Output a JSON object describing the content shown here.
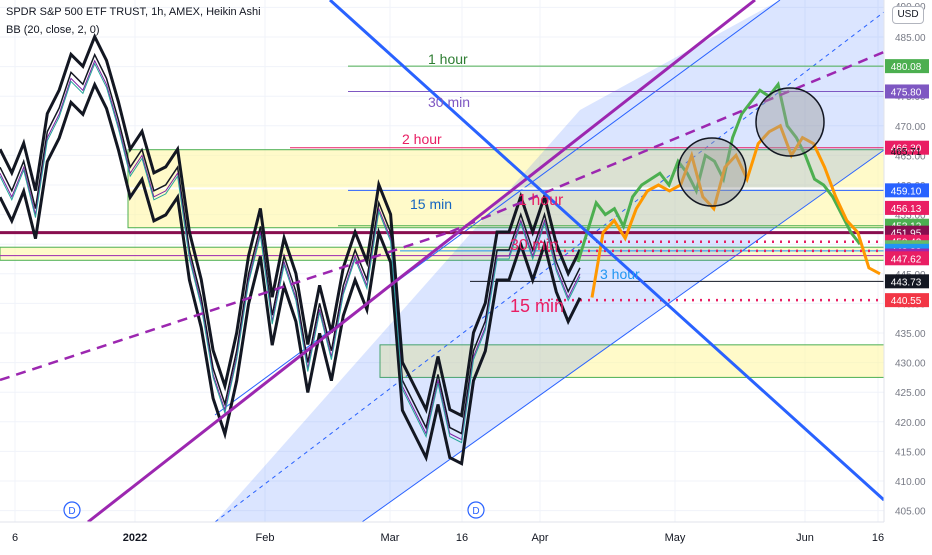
{
  "header": {
    "title": "SPDR S&P 500 ETF TRUST, 1h, AMEX, Heikin Ashi",
    "indicator": "BB (20, close, 2, 0)",
    "currency": "USD"
  },
  "colors": {
    "blue_line": "#2962ff",
    "purple_line": "#9c27b0",
    "channel_fill": "#2962ff",
    "zone_fill": "#fff59d",
    "zone_border": "#4caf50",
    "green_path": "#4caf50",
    "orange_path": "#ff9800",
    "dark_red": "#880e4f",
    "red_dotted": "#e91e63"
  },
  "chart_data": {
    "type": "line",
    "title": "SPDR S&P 500 ETF TRUST, 1h, AMEX, Heikin Ashi",
    "x_ticks": [
      "6",
      "2022",
      "Feb",
      "Mar",
      "16",
      "Apr",
      "May",
      "Jun",
      "16"
    ],
    "y_ticks": [
      405,
      410,
      415,
      420,
      425,
      430,
      435,
      440,
      445,
      450,
      455,
      460,
      465,
      470,
      475,
      480,
      485,
      490
    ],
    "ylim": [
      403,
      490
    ],
    "top_label": "490.00",
    "price_labels": [
      {
        "value": 480.08,
        "label": "480.08",
        "color": "#4caf50"
      },
      {
        "value": 475.8,
        "label": "475.80",
        "color": "#7e57c2"
      },
      {
        "value": 466.3,
        "label": "466.30",
        "color": "#e91e63"
      },
      {
        "value": 465.71,
        "label": "465.71",
        "color": "none"
      },
      {
        "value": 459.1,
        "label": "459.10",
        "color": "#2962ff"
      },
      {
        "value": 456.13,
        "label": "456.13",
        "color": "#e91e63"
      },
      {
        "value": 453.12,
        "label": "453.12",
        "color": "#4caf50"
      },
      {
        "value": 451.95,
        "label": "451.95",
        "color": "#880e4f"
      },
      {
        "value": 450.42,
        "label": "450.42",
        "color": "#e91e63"
      },
      {
        "value": 449.49,
        "label": "449.49",
        "color": "#66bb6a"
      },
      {
        "value": 448.88,
        "label": "448.88",
        "color": "#2196f3"
      },
      {
        "value": 448.08,
        "label": "448.08",
        "color": "#9c27b0"
      },
      {
        "value": 447.62,
        "label": "447.62",
        "color": "#e91e63"
      },
      {
        "value": 443.73,
        "label": "443.73",
        "color": "#131722"
      },
      {
        "value": 440.55,
        "label": "440.55",
        "color": "#f23645"
      }
    ],
    "annotations": [
      {
        "text": "1 hour",
        "color": "#2e7d32"
      },
      {
        "text": "30 min",
        "color": "#7e57c2"
      },
      {
        "text": "2 hour",
        "color": "#e91e63"
      },
      {
        "text": "15 min",
        "color": "#1565c0"
      },
      {
        "text": "1 hour",
        "color": "#e91e63"
      },
      {
        "text": "30 min",
        "color": "#e91e63"
      },
      {
        "text": "3 hour",
        "color": "#2196f3"
      },
      {
        "text": "15 min",
        "color": "#e91e63"
      }
    ],
    "levels": [
      {
        "value": 480.08,
        "color": "#4caf50"
      },
      {
        "value": 475.8,
        "color": "#7e57c2"
      },
      {
        "value": 466.3,
        "color": "#e91e63"
      },
      {
        "value": 459.1,
        "color": "#2962ff"
      },
      {
        "value": 453.12,
        "color": "#4caf50"
      },
      {
        "value": 451.95,
        "color": "#880e4f"
      },
      {
        "value": 448.88,
        "color": "#2196f3"
      },
      {
        "value": 443.73,
        "color": "#131722"
      }
    ],
    "series": [
      {
        "values": [
          462,
          458,
          463,
          455,
          468,
          472,
          478,
          476,
          481,
          477,
          470,
          462,
          465,
          458,
          459,
          462,
          448,
          440,
          428,
          422,
          431,
          444,
          452,
          437,
          447,
          441,
          429,
          439,
          431,
          442,
          448,
          443,
          456,
          451,
          426,
          422,
          418,
          427,
          418,
          417,
          431,
          436,
          448,
          448,
          454,
          448,
          454,
          446,
          441,
          445
        ]
      },
      {
        "values": [
          447,
          452,
          457,
          455,
          456,
          453,
          458,
          460,
          461,
          462,
          460,
          464,
          462,
          459,
          465,
          464,
          461,
          468,
          472,
          474,
          476,
          475,
          477,
          470,
          468,
          465,
          461,
          460,
          458,
          455,
          452,
          450
        ]
      },
      {
        "values": [
          441,
          452,
          454,
          451,
          456,
          459,
          460,
          459,
          460,
          465,
          458,
          456,
          463,
          465,
          461,
          467,
          469,
          470,
          465,
          468,
          467,
          463,
          458,
          454,
          452,
          446,
          445
        ]
      }
    ]
  }
}
